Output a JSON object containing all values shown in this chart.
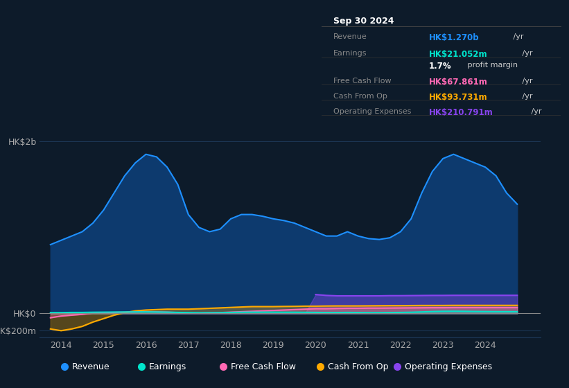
{
  "bg_color": "#0d1b2a",
  "plot_bg_color": "#0d1b2a",
  "title_box_date": "Sep 30 2024",
  "tb_rows": [
    {
      "label": "Revenue",
      "value": "HK$1.270b",
      "suffix": " /yr",
      "value_color": "#1e90ff"
    },
    {
      "label": "Earnings",
      "value": "HK$21.052m",
      "suffix": " /yr",
      "value_color": "#00e5cc"
    },
    {
      "label": "",
      "value": "1.7%",
      "suffix": " profit margin",
      "value_color": "#ffffff"
    },
    {
      "label": "Free Cash Flow",
      "value": "HK$67.861m",
      "suffix": " /yr",
      "value_color": "#ff69b4"
    },
    {
      "label": "Cash From Op",
      "value": "HK$93.731m",
      "suffix": " /yr",
      "value_color": "#ffaa00"
    },
    {
      "label": "Operating Expenses",
      "value": "HK$210.791m",
      "suffix": " /yr",
      "value_color": "#aa44ff"
    }
  ],
  "years": [
    2013.75,
    2014.0,
    2014.25,
    2014.5,
    2014.75,
    2015.0,
    2015.25,
    2015.5,
    2015.75,
    2016.0,
    2016.25,
    2016.5,
    2016.75,
    2017.0,
    2017.25,
    2017.5,
    2017.75,
    2018.0,
    2018.25,
    2018.5,
    2018.75,
    2019.0,
    2019.25,
    2019.5,
    2019.75,
    2020.0,
    2020.25,
    2020.5,
    2020.75,
    2021.0,
    2021.25,
    2021.5,
    2021.75,
    2022.0,
    2022.25,
    2022.5,
    2022.75,
    2023.0,
    2023.25,
    2023.5,
    2023.75,
    2024.0,
    2024.25,
    2024.5,
    2024.75
  ],
  "revenue": [
    800,
    850,
    900,
    950,
    1050,
    1200,
    1400,
    1600,
    1750,
    1850,
    1820,
    1700,
    1500,
    1150,
    1000,
    950,
    980,
    1100,
    1150,
    1150,
    1130,
    1100,
    1080,
    1050,
    1000,
    950,
    900,
    900,
    950,
    900,
    870,
    860,
    880,
    950,
    1100,
    1400,
    1650,
    1800,
    1850,
    1800,
    1750,
    1700,
    1600,
    1400,
    1270
  ],
  "earnings": [
    10,
    10,
    12,
    12,
    14,
    15,
    16,
    17,
    18,
    18,
    17,
    15,
    12,
    10,
    8,
    8,
    9,
    12,
    14,
    15,
    15,
    15,
    14,
    14,
    13,
    12,
    11,
    11,
    12,
    11,
    10,
    10,
    11,
    12,
    14,
    18,
    22,
    25,
    26,
    25,
    23,
    22,
    21,
    21,
    21
  ],
  "free_cash_flow": [
    -50,
    -30,
    -20,
    -10,
    5,
    10,
    12,
    15,
    18,
    20,
    18,
    15,
    10,
    5,
    5,
    8,
    10,
    15,
    20,
    25,
    30,
    35,
    40,
    45,
    50,
    55,
    55,
    58,
    60,
    60,
    62,
    62,
    63,
    64,
    65,
    66,
    67,
    67,
    68,
    68,
    68,
    68,
    68,
    68,
    68
  ],
  "cash_from_op": [
    -180,
    -200,
    -180,
    -150,
    -100,
    -60,
    -20,
    10,
    30,
    40,
    45,
    50,
    50,
    50,
    55,
    60,
    65,
    70,
    75,
    80,
    80,
    80,
    82,
    83,
    85,
    85,
    87,
    88,
    88,
    88,
    89,
    90,
    91,
    91,
    92,
    93,
    93,
    93,
    94,
    94,
    94,
    94,
    94,
    94,
    94
  ],
  "operating_expenses": [
    0,
    0,
    0,
    0,
    0,
    0,
    0,
    0,
    0,
    0,
    0,
    0,
    0,
    0,
    0,
    0,
    0,
    0,
    0,
    0,
    0,
    0,
    0,
    0,
    0,
    220,
    210,
    205,
    205,
    205,
    205,
    205,
    207,
    207,
    208,
    209,
    210,
    210,
    211,
    211,
    211,
    211,
    211,
    211,
    211
  ],
  "revenue_color": "#1e90ff",
  "revenue_fill": "#0d3a6e",
  "earnings_color": "#00e5cc",
  "fcf_color": "#ff69b4",
  "cfop_color": "#ffaa00",
  "opex_color": "#8844ee",
  "xlim": [
    2013.5,
    2025.3
  ],
  "ylim": [
    -280,
    2200
  ],
  "yticks": [
    -200,
    0,
    2000
  ],
  "ytick_labels": [
    "-HK$200m",
    "HK$0",
    "HK$2b"
  ],
  "xticks": [
    2014,
    2015,
    2016,
    2017,
    2018,
    2019,
    2020,
    2021,
    2022,
    2023,
    2024
  ],
  "legend_items": [
    {
      "label": "Revenue",
      "color": "#1e90ff"
    },
    {
      "label": "Earnings",
      "color": "#00e5cc"
    },
    {
      "label": "Free Cash Flow",
      "color": "#ff69b4"
    },
    {
      "label": "Cash From Op",
      "color": "#ffaa00"
    },
    {
      "label": "Operating Expenses",
      "color": "#8844ee"
    }
  ],
  "grid_color": "#1e3a5a",
  "text_color": "#aaaaaa",
  "zero_line_color": "#888888"
}
